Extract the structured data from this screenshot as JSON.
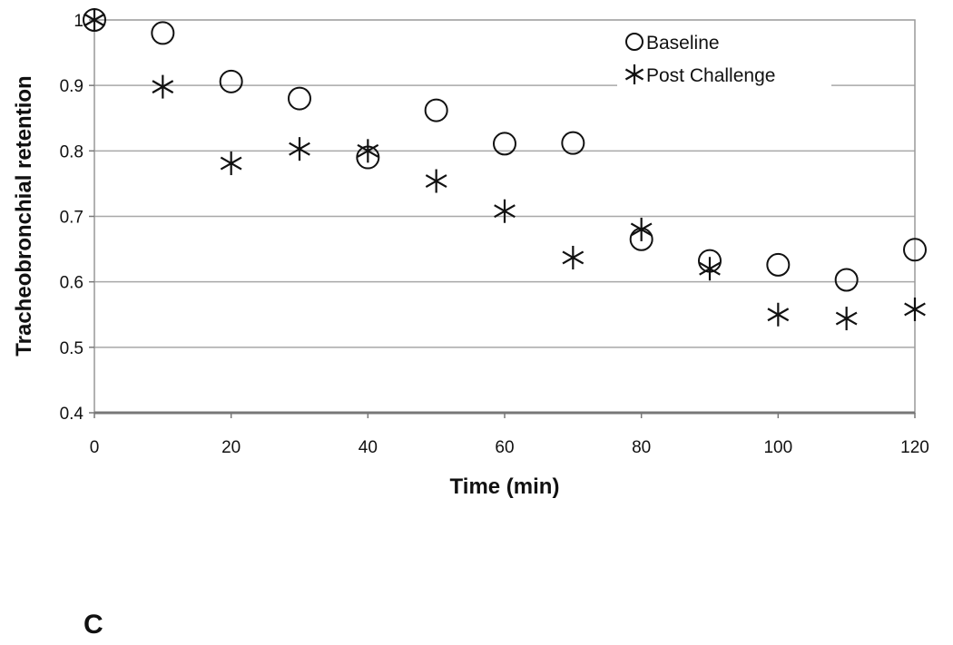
{
  "chart_data": {
    "type": "scatter",
    "xlabel": "Time (min)",
    "ylabel": "Tracheobronchial retention",
    "xlim": [
      0,
      120
    ],
    "ylim": [
      0.4,
      1.0
    ],
    "xticks": [
      "0",
      "20",
      "40",
      "60",
      "80",
      "100",
      "120"
    ],
    "yticks": [
      "0.4",
      "0.5",
      "0.6",
      "0.7",
      "0.8",
      "0.9",
      "1"
    ],
    "grid": "horizontal",
    "legend": "top-right",
    "series": [
      {
        "name": "Baseline",
        "marker": "open-circle",
        "x": [
          0,
          10,
          20,
          30,
          40,
          50,
          60,
          70,
          80,
          90,
          100,
          110,
          120
        ],
        "y": [
          1.0,
          0.98,
          0.906,
          0.88,
          0.79,
          0.862,
          0.811,
          0.812,
          0.665,
          0.632,
          0.626,
          0.603,
          0.649
        ]
      },
      {
        "name": "Post Challenge",
        "marker": "asterisk",
        "x": [
          0,
          10,
          20,
          30,
          40,
          50,
          60,
          70,
          80,
          90,
          100,
          110,
          120
        ],
        "y": [
          1.0,
          0.898,
          0.781,
          0.803,
          0.8,
          0.754,
          0.708,
          0.637,
          0.68,
          0.62,
          0.55,
          0.544,
          0.558
        ]
      }
    ]
  },
  "panel_label": "C"
}
